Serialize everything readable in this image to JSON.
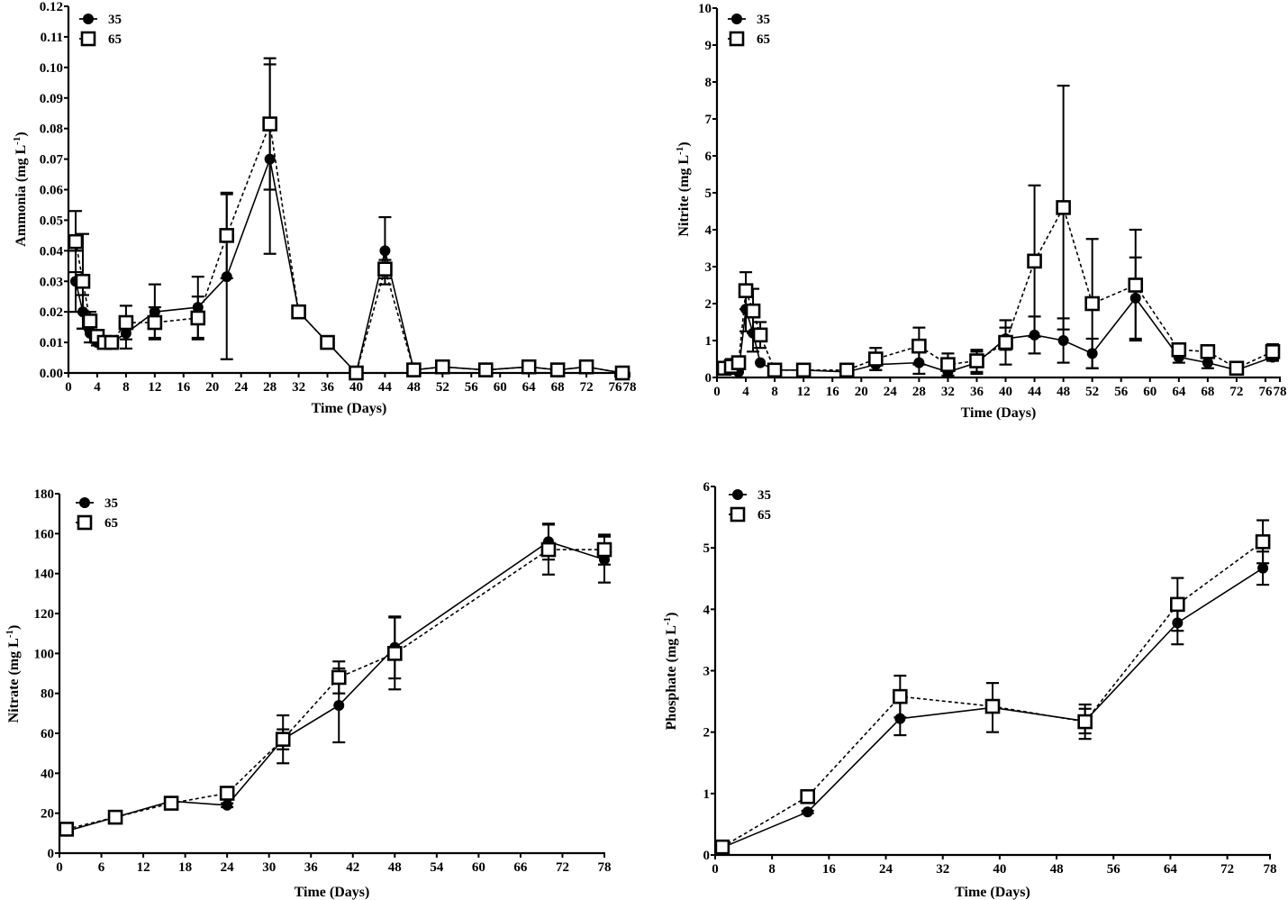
{
  "chart_data": [
    {
      "id": "ammonia",
      "type": "line",
      "title": "",
      "xlabel": "Time (Days)",
      "ylabel": "Ammonia (mg L",
      "ylabel_sup": "-1",
      "ylabel_end": ")",
      "xlim": [
        0,
        78
      ],
      "ylim": [
        0,
        0.12
      ],
      "xticks": [
        0,
        4,
        8,
        12,
        16,
        20,
        24,
        28,
        32,
        36,
        40,
        44,
        48,
        52,
        56,
        60,
        64,
        68,
        72,
        76,
        78
      ],
      "xtick_labels": [
        "0",
        "4",
        "8",
        "12",
        "16",
        "20",
        "24",
        "28",
        "32",
        "36",
        "40",
        "44",
        "48",
        "52",
        "56",
        "60",
        "64",
        "68",
        "72",
        "76",
        "78"
      ],
      "yticks": [
        0,
        0.01,
        0.02,
        0.03,
        0.04,
        0.05,
        0.06,
        0.07,
        0.08,
        0.09,
        0.1,
        0.11,
        0.12
      ],
      "ytick_labels": [
        "0.00",
        "0.01",
        "0.02",
        "0.03",
        "0.04",
        "0.05",
        "0.06",
        "0.07",
        "0.08",
        "0.09",
        "0.10",
        "0.11",
        "0.12"
      ],
      "legend": {
        "position": "top-left",
        "entries": [
          "35",
          "65"
        ]
      },
      "series": [
        {
          "name": "35",
          "marker": "filled-circle",
          "line": "solid",
          "x": [
            1,
            2,
            3,
            4,
            5,
            6,
            8,
            12,
            18,
            22,
            28,
            32,
            36,
            40,
            44,
            48,
            52,
            58,
            64,
            68,
            72,
            77
          ],
          "y": [
            0.03,
            0.02,
            0.013,
            0.01,
            0.01,
            0.01,
            0.013,
            0.02,
            0.0215,
            0.0315,
            0.07,
            0.02,
            0.01,
            0.0,
            0.04,
            0.001,
            0.002,
            0.001,
            0.002,
            0.001,
            0.002,
            0.0
          ],
          "err": [
            0.01,
            0.0055,
            0.003,
            0.001,
            0.0,
            0.0,
            0.005,
            0.009,
            0.01,
            0.027,
            0.031,
            0.0,
            0.0,
            0.0,
            0.011,
            0.0,
            0.0,
            0.0,
            0.0,
            0.0,
            0.0,
            0.0
          ]
        },
        {
          "name": "65",
          "marker": "open-square",
          "line": "dashed",
          "x": [
            1,
            2,
            3,
            4,
            5,
            6,
            8,
            12,
            18,
            22,
            28,
            32,
            36,
            40,
            44,
            48,
            52,
            58,
            64,
            68,
            72,
            77
          ],
          "y": [
            0.043,
            0.03,
            0.017,
            0.012,
            0.01,
            0.01,
            0.0165,
            0.0165,
            0.018,
            0.045,
            0.0815,
            0.02,
            0.01,
            0.0,
            0.034,
            0.001,
            0.002,
            0.001,
            0.002,
            0.001,
            0.002,
            0.0
          ],
          "err": [
            0.01,
            0.0155,
            0.003,
            0.002,
            0.0,
            0.0,
            0.0055,
            0.005,
            0.007,
            0.014,
            0.0215,
            0.0,
            0.0,
            0.0,
            0.003,
            0.0,
            0.0,
            0.0,
            0.0,
            0.0,
            0.0,
            0.0
          ]
        }
      ]
    },
    {
      "id": "nitrite",
      "type": "line",
      "title": "",
      "xlabel": "Time (Days)",
      "ylabel": "Nitrite (mg L",
      "ylabel_sup": "-1",
      "ylabel_end": ")",
      "xlim": [
        0,
        78
      ],
      "ylim": [
        0,
        10
      ],
      "xticks": [
        0,
        4,
        8,
        12,
        16,
        20,
        24,
        28,
        32,
        36,
        40,
        44,
        48,
        52,
        56,
        60,
        64,
        68,
        72,
        76,
        78
      ],
      "xtick_labels": [
        "0",
        "4",
        "8",
        "12",
        "16",
        "20",
        "24",
        "28",
        "32",
        "36",
        "40",
        "44",
        "48",
        "52",
        "56",
        "60",
        "64",
        "68",
        "72",
        "76",
        "78"
      ],
      "yticks": [
        0,
        1,
        2,
        3,
        4,
        5,
        6,
        7,
        8,
        9,
        10
      ],
      "ytick_labels": [
        "0",
        "1",
        "2",
        "3",
        "4",
        "5",
        "6",
        "7",
        "8",
        "9",
        "10"
      ],
      "legend": {
        "position": "top-left",
        "entries": [
          "35",
          "65"
        ]
      },
      "series": [
        {
          "name": "35",
          "marker": "filled-circle",
          "line": "solid",
          "x": [
            1,
            2,
            3,
            4,
            5,
            6,
            8,
            12,
            18,
            22,
            28,
            32,
            36,
            40,
            44,
            48,
            52,
            58,
            64,
            68,
            72,
            77
          ],
          "y": [
            0.25,
            0.3,
            0.15,
            1.85,
            1.2,
            0.4,
            0.2,
            0.2,
            0.15,
            0.35,
            0.4,
            0.15,
            0.4,
            1.05,
            1.15,
            1.0,
            0.65,
            2.15,
            0.55,
            0.4,
            0.2,
            0.55
          ],
          "err": [
            0.1,
            0.15,
            0.2,
            0.6,
            0.5,
            0.0,
            0.05,
            0.05,
            0.05,
            0.15,
            0.3,
            0.1,
            0.3,
            0.3,
            0.5,
            0.6,
            0.4,
            1.1,
            0.15,
            0.15,
            0.05,
            0.1
          ]
        },
        {
          "name": "65",
          "marker": "open-square",
          "line": "dashed",
          "x": [
            1,
            2,
            3,
            4,
            5,
            6,
            8,
            12,
            18,
            22,
            28,
            32,
            36,
            40,
            44,
            48,
            52,
            58,
            64,
            68,
            72,
            77
          ],
          "y": [
            0.25,
            0.3,
            0.4,
            2.35,
            1.8,
            1.15,
            0.2,
            0.2,
            0.2,
            0.5,
            0.85,
            0.35,
            0.45,
            0.95,
            3.15,
            4.6,
            2.0,
            2.5,
            0.75,
            0.7,
            0.25,
            0.7
          ],
          "err": [
            0.1,
            0.2,
            0.15,
            0.5,
            0.6,
            0.35,
            0.05,
            0.05,
            0.05,
            0.3,
            0.5,
            0.3,
            0.3,
            0.6,
            2.05,
            3.3,
            1.75,
            1.5,
            0.1,
            0.1,
            0.05,
            0.2
          ]
        }
      ]
    },
    {
      "id": "nitrate",
      "type": "line",
      "title": "",
      "xlabel": "Time (Days)",
      "ylabel": "Nitrate (mg L",
      "ylabel_sup": "-1",
      "ylabel_end": ")",
      "xlim": [
        0,
        78
      ],
      "ylim": [
        0,
        180
      ],
      "xticks": [
        0,
        6,
        12,
        18,
        24,
        30,
        36,
        42,
        48,
        54,
        60,
        66,
        72,
        78
      ],
      "xtick_labels": [
        "0",
        "6",
        "12",
        "18",
        "24",
        "30",
        "36",
        "42",
        "48",
        "54",
        "60",
        "66",
        "72",
        "78"
      ],
      "yticks": [
        0,
        20,
        40,
        60,
        80,
        100,
        120,
        140,
        160,
        180
      ],
      "ytick_labels": [
        "0",
        "20",
        "40",
        "60",
        "80",
        "100",
        "120",
        "140",
        "160",
        "180"
      ],
      "legend": {
        "position": "top-left",
        "entries": [
          "35",
          "65"
        ]
      },
      "series": [
        {
          "name": "35",
          "marker": "filled-circle",
          "line": "solid",
          "x": [
            1,
            8,
            16,
            24,
            32,
            40,
            48,
            70,
            78
          ],
          "y": [
            11,
            18,
            26,
            24,
            57,
            74,
            103,
            156,
            147
          ],
          "err": [
            1,
            1,
            1,
            1,
            12,
            18.5,
            15.5,
            9,
            11.5
          ]
        },
        {
          "name": "65",
          "marker": "open-square",
          "line": "dashed",
          "x": [
            1,
            8,
            16,
            24,
            32,
            40,
            48,
            70,
            78
          ],
          "y": [
            12,
            18,
            25,
            30,
            57,
            88,
            100,
            152,
            152
          ],
          "err": [
            1,
            1,
            1,
            1,
            5,
            8,
            18,
            12.5,
            7.5
          ]
        }
      ]
    },
    {
      "id": "phosphate",
      "type": "line",
      "title": "",
      "xlabel": "Time (Days)",
      "ylabel": "Phosphate (mg L",
      "ylabel_sup": "-1",
      "ylabel_end": ")",
      "xlim": [
        0,
        78
      ],
      "ylim": [
        0,
        6
      ],
      "xticks": [
        0,
        8,
        16,
        24,
        32,
        40,
        48,
        56,
        64,
        72,
        78
      ],
      "xtick_labels": [
        "0",
        "8",
        "16",
        "24",
        "32",
        "40",
        "48",
        "56",
        "64",
        "72",
        "78"
      ],
      "yticks": [
        0,
        1,
        2,
        3,
        4,
        5,
        6
      ],
      "ytick_labels": [
        "0",
        "1",
        "2",
        "3",
        "4",
        "5",
        "6"
      ],
      "legend": {
        "position": "top-left",
        "entries": [
          "35",
          "65"
        ]
      },
      "series": [
        {
          "name": "35",
          "marker": "filled-circle",
          "line": "solid",
          "x": [
            1,
            13,
            26,
            39,
            52,
            65,
            77
          ],
          "y": [
            0.12,
            0.7,
            2.22,
            2.4,
            2.18,
            3.78,
            4.67
          ],
          "err": [
            0.02,
            0.02,
            0.27,
            0.4,
            0.2,
            0.35,
            0.27
          ]
        },
        {
          "name": "65",
          "marker": "open-square",
          "line": "dashed",
          "x": [
            1,
            13,
            26,
            39,
            52,
            65,
            77
          ],
          "y": [
            0.13,
            0.95,
            2.58,
            2.42,
            2.17,
            4.08,
            5.1
          ],
          "err": [
            0.02,
            0.03,
            0.34,
            0.05,
            0.28,
            0.43,
            0.35
          ]
        }
      ]
    }
  ]
}
